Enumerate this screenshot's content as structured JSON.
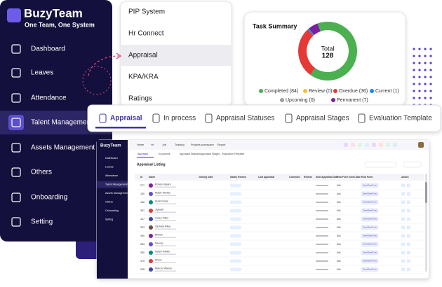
{
  "brand": {
    "name": "BuzyTeam",
    "tagline": "One Team, One System"
  },
  "sidebar": {
    "items": [
      "Dashboard",
      "Leaves",
      "Attendance",
      "Talent Management",
      "Assets Management",
      "Others",
      "Onboarding",
      "Setting"
    ],
    "active": 3
  },
  "submenu": {
    "items": [
      "PIP System",
      "Hr Connect",
      "Appraisal",
      "KPA/KRA",
      "Ratings"
    ],
    "active": 2
  },
  "task_summary": {
    "title": "Task Summary",
    "total_label": "Total",
    "total": 128,
    "segments": [
      {
        "label": "Completed (84)",
        "value": 84,
        "color": "#4caf50"
      },
      {
        "label": "Review (0)",
        "value": 0,
        "color": "#f2c12e"
      },
      {
        "label": "Overdue (36)",
        "value": 36,
        "color": "#e53935"
      },
      {
        "label": "Current (1)",
        "value": 1,
        "color": "#1e88e5"
      },
      {
        "label": "Upcoming (0)",
        "value": 0,
        "color": "#9e9e9e"
      },
      {
        "label": "Permanent (7)",
        "value": 7,
        "color": "#7b1fa2"
      }
    ]
  },
  "tabs": {
    "items": [
      "Appraisal",
      "In process",
      "Appraisal Statuses",
      "Appraisal Stages",
      "Evaluation Template"
    ],
    "active": 0
  },
  "mini_screen": {
    "nav": [
      "Home",
      "Hr",
      "Job",
      "Training",
      "Projects workspace",
      "Report"
    ],
    "title": "Appraisal Listing",
    "columns": [
      "Id",
      "Name",
      "Joining Date",
      "Salary Review",
      "Last Appraisal",
      "Comment",
      "Review",
      "Next Appraisal Date",
      "Eval Form Send Date",
      "Eval Form",
      "Action"
    ],
    "button": "Send Eval Form",
    "rows": [
      [
        "277",
        "Rohan Vasani",
        "N/A"
      ],
      [
        "150",
        "Malav Shukla",
        "N/A"
      ],
      [
        "160",
        "Sunil Gosai",
        "N/A"
      ],
      [
        "361",
        "Jignesh",
        "N/A"
      ],
      [
        "317",
        "Corey Patel",
        "N/A"
      ],
      [
        "323",
        "Zachary Riley",
        "N/A"
      ],
      [
        "300",
        "Bhavin",
        "N/A"
      ],
      [
        "283",
        "Neeraj",
        "N/A"
      ],
      [
        "380",
        "Harsh Parikh",
        "N/A"
      ],
      [
        "375",
        "Dhruv",
        "N/A"
      ],
      [
        "328",
        "Marcus Warner",
        "N/A"
      ]
    ]
  }
}
